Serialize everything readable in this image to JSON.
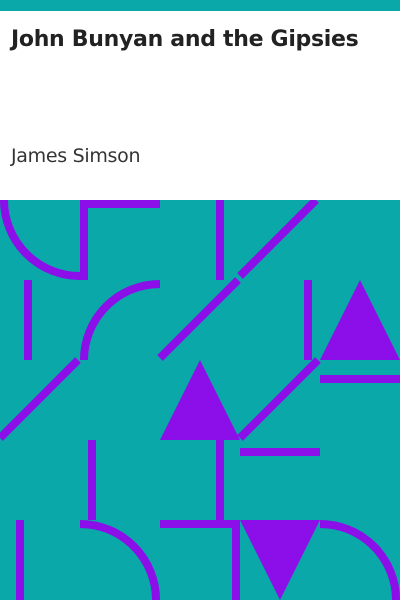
{
  "cover": {
    "title": "John Bunyan and the Gipsies",
    "author": "James Simson",
    "colors": {
      "background": "#ffffff",
      "accent": "#0aa8a8",
      "pattern": "#8c0ee8",
      "text": "#222222"
    }
  }
}
